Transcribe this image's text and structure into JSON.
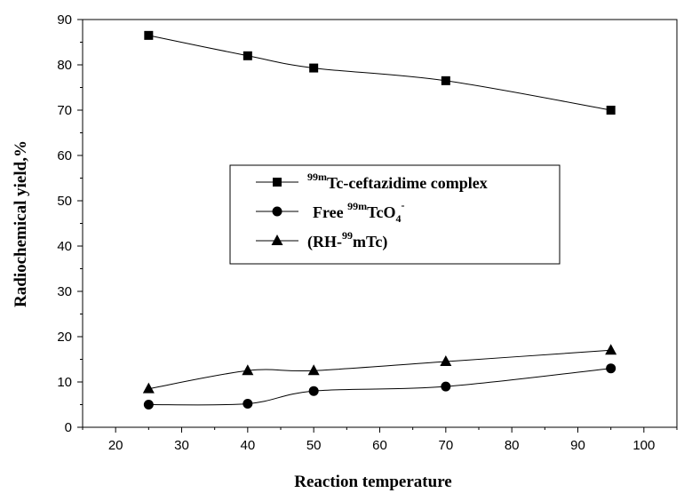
{
  "chart_data": {
    "type": "line",
    "title": "",
    "xlabel": "Reaction temperature",
    "ylabel": "Radiochemical yield,%",
    "xlim": [
      15,
      105
    ],
    "ylim": [
      0,
      90
    ],
    "x_ticks": [
      20,
      30,
      40,
      50,
      60,
      70,
      80,
      90,
      100
    ],
    "y_ticks": [
      0,
      10,
      20,
      30,
      40,
      50,
      60,
      70,
      80,
      90
    ],
    "grid": false,
    "legend_position": "center",
    "x": [
      25,
      40,
      50,
      70,
      95
    ],
    "series": [
      {
        "name": "99mTc-ceftazidime complex",
        "legend": {
          "sup": "99m",
          "main": "Tc-ceftazidime complex"
        },
        "marker": "square",
        "values": [
          86.5,
          82.0,
          79.3,
          76.5,
          70.0
        ]
      },
      {
        "name": "Free 99mTcO4-",
        "legend": {
          "pre": "Free ",
          "sup": "99m",
          "main": "TcO",
          "sub": "4",
          "sup2": "-"
        },
        "marker": "circle",
        "values": [
          5.0,
          5.2,
          8.0,
          9.0,
          13.0
        ]
      },
      {
        "name": "(RH-99mTc)",
        "legend": {
          "pre": "(RH-",
          "sup": "99",
          "main": "mTc)"
        },
        "marker": "triangle",
        "values": [
          8.5,
          12.5,
          12.5,
          14.5,
          17.0
        ]
      }
    ]
  }
}
